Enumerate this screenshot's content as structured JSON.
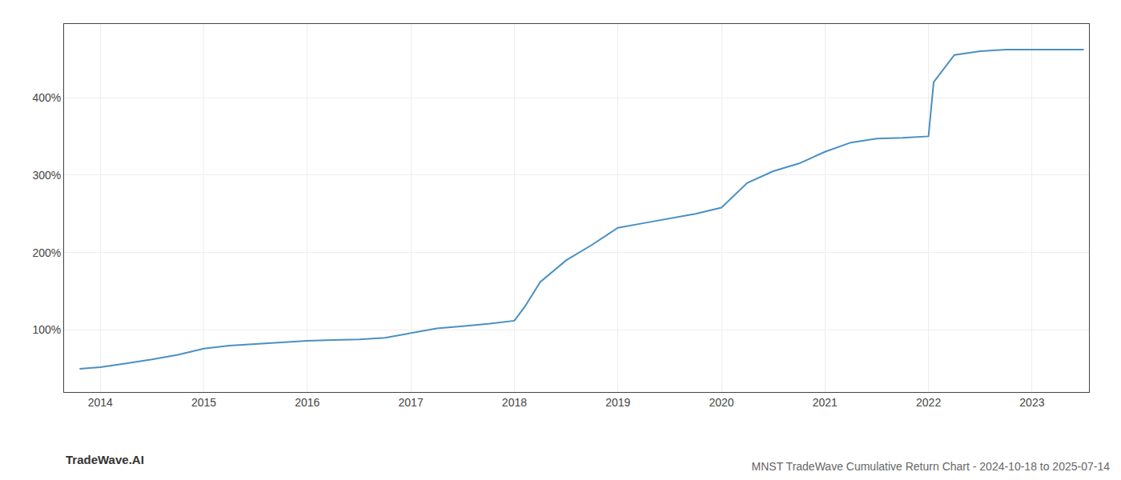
{
  "chart_data": {
    "type": "line",
    "title": "MNST TradeWave Cumulative Return Chart - 2024-10-18 to 2025-07-14",
    "annotations": [
      "TradeWave.AI"
    ],
    "x": [
      2013.8,
      2014.0,
      2014.25,
      2014.5,
      2014.75,
      2015.0,
      2015.25,
      2015.5,
      2015.75,
      2016.0,
      2016.25,
      2016.5,
      2016.75,
      2017.0,
      2017.1,
      2017.25,
      2017.5,
      2017.75,
      2018.0,
      2018.1,
      2018.25,
      2018.5,
      2018.75,
      2019.0,
      2019.25,
      2019.5,
      2019.75,
      2020.0,
      2020.25,
      2020.5,
      2020.75,
      2021.0,
      2021.25,
      2021.5,
      2021.75,
      2022.0,
      2022.05,
      2022.25,
      2022.5,
      2022.75,
      2023.0,
      2023.25,
      2023.5
    ],
    "values": [
      50,
      52,
      57,
      62,
      68,
      76,
      80,
      82,
      84,
      86,
      87,
      88,
      90,
      96,
      98,
      102,
      105,
      108,
      112,
      130,
      162,
      190,
      210,
      232,
      238,
      244,
      250,
      258,
      290,
      305,
      315,
      330,
      342,
      347,
      348,
      350,
      420,
      455,
      460,
      462,
      462,
      462,
      462
    ],
    "color": "#4a90c4",
    "xlim": [
      2013.65,
      2023.55
    ],
    "xticks": [
      2014,
      2015,
      2016,
      2017,
      2018,
      2019,
      2020,
      2021,
      2022,
      2023
    ],
    "ylim": [
      20,
      495
    ],
    "yticks": [
      {
        "value": 100,
        "label": "100%"
      },
      {
        "value": 200,
        "label": "200%"
      },
      {
        "value": 300,
        "label": "300%"
      },
      {
        "value": 400,
        "label": "400%"
      }
    ],
    "grid": true
  }
}
